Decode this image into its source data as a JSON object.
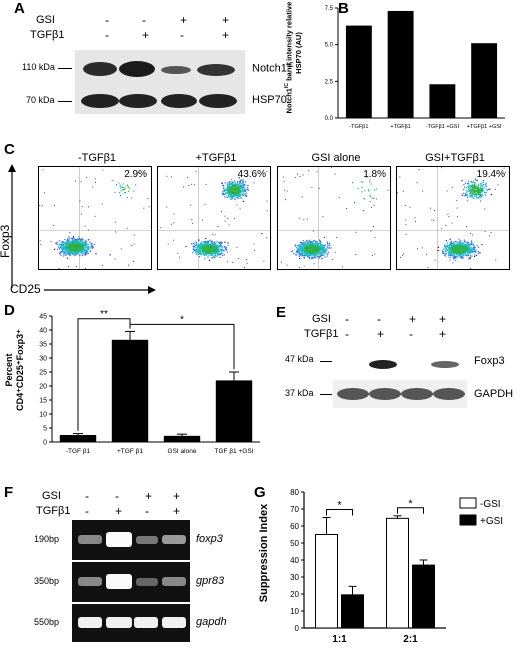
{
  "panelA": {
    "label": "A",
    "gsi_label": "GSI",
    "tgf_label": "TGFβ1",
    "gsi_signs": [
      "-",
      "-",
      "+",
      "+"
    ],
    "tgf_signs": [
      "-",
      "+",
      "-",
      "+"
    ],
    "marker_notch": "110 kDa",
    "marker_hsp": "70 kDa",
    "band_notch": "Notch1",
    "band_notch_sup": "IC",
    "band_hsp": "HSP70"
  },
  "panelB": {
    "label": "B",
    "ylabel": "Notch1",
    "ylabel_sup": "IC",
    "ylabel_rest": " band intensity relative to HSP70 (AU)",
    "chart_data": {
      "type": "bar",
      "categories": [
        "-TGFβ1",
        "+TGFβ1",
        "-TGFβ1 +GSI",
        "+TGFβ1 +GSI"
      ],
      "values": [
        6.3,
        7.3,
        2.3,
        5.1
      ],
      "ylim": [
        0,
        7.5
      ],
      "yticks": [
        "0.0",
        "2.5",
        "5.0",
        "7.5"
      ]
    }
  },
  "panelC": {
    "label": "C",
    "yaxis": "Foxp3",
    "xaxis": "CD25",
    "plots": [
      {
        "title": "-TGFβ1",
        "pct": "2.9%"
      },
      {
        "title": "+TGFβ1",
        "pct": "43.6%"
      },
      {
        "title": "GSI alone",
        "pct": "1.8%"
      },
      {
        "title": "GSI+TGFβ1",
        "pct": "19.4%"
      }
    ]
  },
  "panelD": {
    "label": "D",
    "ylabel_line1": "Percent",
    "ylabel_line2": "CD4⁺CD25⁺Foxp3⁺",
    "sig1": "**",
    "sig2": "*",
    "chart_data": {
      "type": "bar",
      "categories": [
        "-TGF β1",
        "+TGF β1",
        "GSI alone",
        "TGF β1 +GSI"
      ],
      "values": [
        2.5,
        36.5,
        2.2,
        22
      ],
      "errors": [
        0.5,
        3,
        0.6,
        3
      ],
      "ylim": [
        0,
        45
      ],
      "yticks": [
        "0",
        "5",
        "10",
        "15",
        "20",
        "25",
        "30",
        "35",
        "40",
        "45"
      ]
    }
  },
  "panelE": {
    "label": "E",
    "gsi_label": "GSI",
    "tgf_label": "TGFβ1",
    "gsi_signs": [
      "-",
      "-",
      "+",
      "+"
    ],
    "tgf_signs": [
      "-",
      "+",
      "-",
      "+"
    ],
    "marker_foxp3": "47 kDa",
    "marker_gapdh": "37 kDa",
    "band_foxp3": "Foxp3",
    "band_gapdh": "GAPDH"
  },
  "panelF": {
    "label": "F",
    "gsi_label": "GSI",
    "tgf_label": "TGFβ1",
    "gsi_signs": [
      "-",
      "-",
      "+",
      "+"
    ],
    "tgf_signs": [
      "-",
      "+",
      "-",
      "+"
    ],
    "rows": [
      {
        "size": "190bp",
        "gene": "foxp3"
      },
      {
        "size": "350bp",
        "gene": "gpr83"
      },
      {
        "size": "550bp",
        "gene": "gapdh"
      }
    ]
  },
  "panelG": {
    "label": "G",
    "ylabel": "Suppression Index",
    "legend": [
      "-GSI",
      "+GSI"
    ],
    "sig": [
      "*",
      "*"
    ],
    "chart_data": {
      "type": "bar",
      "categories": [
        "1:1",
        "2:1"
      ],
      "series": [
        {
          "name": "-GSI",
          "values": [
            55,
            64.5
          ],
          "errors": [
            10,
            1.5
          ]
        },
        {
          "name": "+GSI",
          "values": [
            19.5,
            37
          ],
          "errors": [
            5,
            3
          ]
        }
      ],
      "ylim": [
        0,
        80
      ],
      "yticks": [
        "0",
        "10",
        "20",
        "30",
        "40",
        "50",
        "60",
        "70",
        "80"
      ]
    }
  }
}
